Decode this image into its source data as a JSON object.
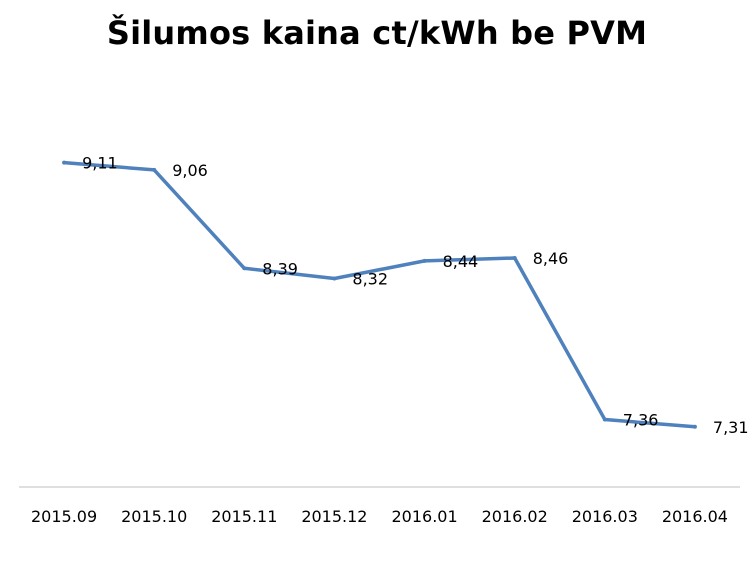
{
  "chart_data": {
    "type": "line",
    "title": "Šilumos kaina ct/kWh be PVM",
    "xlabel": "",
    "ylabel": "",
    "categories": [
      "2015.09",
      "2015.10",
      "2015.11",
      "2015.12",
      "2016.01",
      "2016.02",
      "2016.03",
      "2016.04"
    ],
    "series": [
      {
        "values": [
          9.11,
          9.06,
          8.39,
          8.32,
          8.44,
          8.46,
          7.36,
          7.31
        ],
        "data_labels": [
          "9,11",
          "9,06",
          "8,39",
          "8,32",
          "8,44",
          "8,46",
          "7,36",
          "7,31"
        ],
        "color": "#4F81BD"
      }
    ],
    "ylim": [
      6.9,
      9.4
    ],
    "grid": false,
    "legend": "none",
    "y_axis_visible": false,
    "axis_color": "#BFBFBF"
  }
}
